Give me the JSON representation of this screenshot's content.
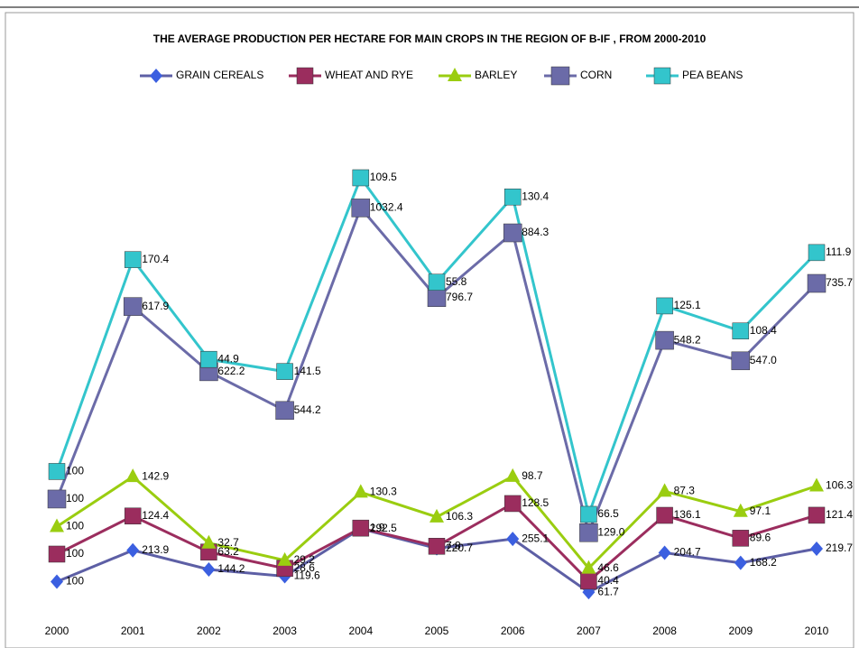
{
  "chart_data": {
    "type": "stacked_line",
    "title": "THE AVERAGE PRODUCTION PER HECTARE FOR MAIN CROPS IN THE REGION OF B-IF , FROM 2000-2010",
    "categories": [
      "2000",
      "2001",
      "2002",
      "2003",
      "2004",
      "2005",
      "2006",
      "2007",
      "2008",
      "2009",
      "2010"
    ],
    "ylim": [
      0,
      1950
    ],
    "series": [
      {
        "name": "GRAIN CEREALS",
        "color": "#3b5fe0",
        "line_color": "#5d5fa5",
        "marker": "diamond",
        "values": [
          100,
          213.9,
          144.2,
          119.6,
          292.5,
          220.7,
          255.1,
          61.7,
          204.7,
          168.2,
          219.7
        ],
        "value_labels": [
          "100",
          "213.9",
          "144.2",
          "119.6",
          "292.5",
          "220.7",
          "255.1",
          "61.7",
          "204.7",
          "168.2",
          "219.7"
        ]
      },
      {
        "name": "WHEAT AND RYE",
        "color": "#9b2d5e",
        "line_color": "#9b2d5e",
        "marker": "square",
        "values": [
          100,
          124.4,
          63.2,
          28.6,
          1.9,
          7.8,
          128.5,
          40.4,
          136.1,
          89.6,
          121.4
        ],
        "value_labels": [
          "100",
          "124.4",
          "63.2",
          "28.6",
          "1.9",
          "7.8",
          "128.5",
          "40.4",
          "136.1",
          "89.6",
          "121.4"
        ]
      },
      {
        "name": "BARLEY",
        "color": "#9acd10",
        "line_color": "#9acd10",
        "marker": "triangle",
        "values": [
          100,
          142.9,
          32.7,
          29.2,
          130.3,
          106.3,
          98.7,
          46.6,
          87.3,
          97.1,
          106.3
        ],
        "value_labels": [
          "100",
          "142.9",
          "32.7",
          "29.2",
          "130.3",
          "106.3",
          "98.7",
          "46.6",
          "87.3",
          "97.1",
          "106.3"
        ]
      },
      {
        "name": "CORN",
        "color": "#6b6ba8",
        "line_color": "#6b6ba8",
        "marker": "bigsquare",
        "values": [
          100,
          617.9,
          622.2,
          544.2,
          1032.4,
          796.7,
          884.3,
          129.0,
          548.2,
          547.0,
          735.7
        ],
        "value_labels": [
          "100",
          "617.9",
          "622.2",
          "544.2",
          "1032.4",
          "796.7",
          "884.3",
          "129.0",
          "548.2",
          "547.0",
          "735.7"
        ]
      },
      {
        "name": "PEA BEANS",
        "color": "#33c5cc",
        "line_color": "#33c5cc",
        "marker": "square",
        "values": [
          100,
          170.4,
          44.9,
          141.5,
          109.5,
          55.8,
          130.4,
          66.5,
          125.1,
          108.4,
          111.9
        ],
        "value_labels": [
          "100",
          "170.4",
          "44.9",
          "141.5",
          "109.5",
          "55.8",
          "130.4",
          "66.5",
          "125.1",
          "108.4",
          "111.9"
        ]
      }
    ]
  }
}
